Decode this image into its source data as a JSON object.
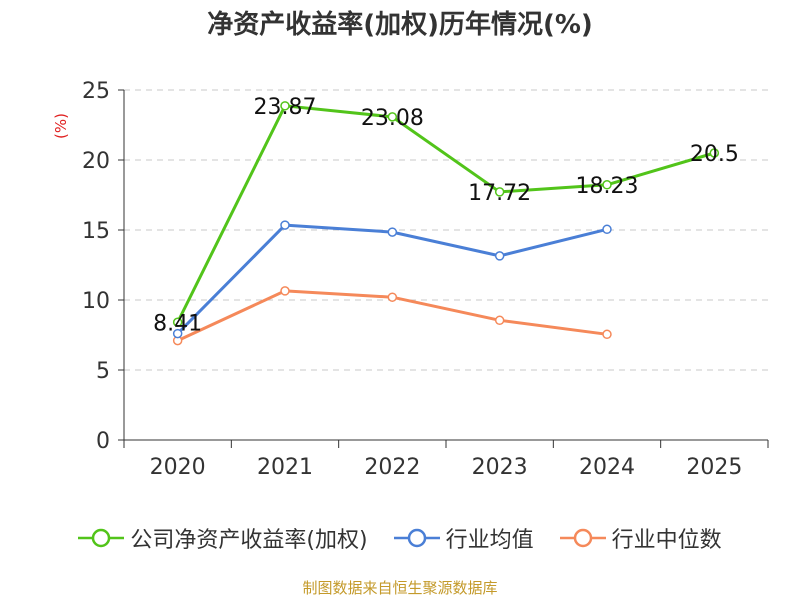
{
  "chart_data": {
    "type": "line",
    "title": "净资产收益率(加权)历年情况(%)",
    "ylabel": "(%)",
    "xlabel": "",
    "categories": [
      "2020",
      "2021",
      "2022",
      "2023",
      "2024",
      "2025"
    ],
    "ylim": [
      0,
      25
    ],
    "yticks": [
      0,
      5,
      10,
      15,
      20,
      25
    ],
    "grid": true,
    "legend_position": "bottom",
    "series": [
      {
        "name": "公司净资产收益率(加权)",
        "color": "#52c41a",
        "values": [
          8.41,
          23.87,
          23.08,
          17.72,
          18.23,
          20.5
        ],
        "labels": [
          "8.41",
          "23.87",
          "23.08",
          "17.72",
          "18.23",
          "20.5"
        ]
      },
      {
        "name": "行业均值",
        "color": "#4a7fd6",
        "values": [
          7.6,
          15.35,
          14.85,
          13.15,
          15.05,
          null
        ]
      },
      {
        "name": "行业中位数",
        "color": "#f5895a",
        "values": [
          7.1,
          10.65,
          10.2,
          8.55,
          7.55,
          null
        ]
      }
    ]
  },
  "footer": {
    "source": "制图数据来自恒生聚源数据库",
    "source_color": "#c49a2a",
    "ylabel_color": "#e02020"
  }
}
